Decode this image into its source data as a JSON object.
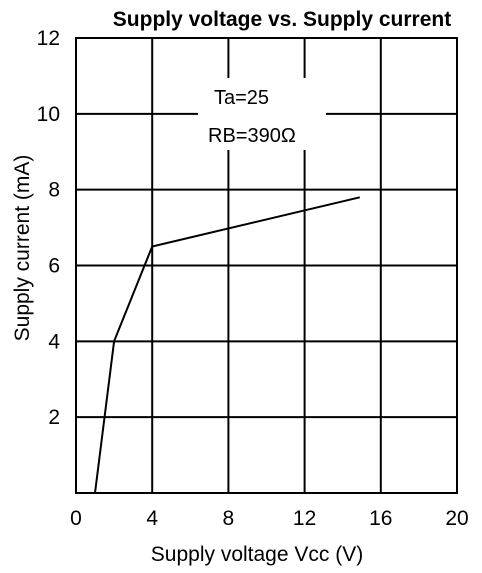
{
  "chart_data": {
    "type": "line",
    "title": "Supply voltage vs. Supply current",
    "xlabel": "Supply voltage Vcc (V)",
    "ylabel": "Supply current (mA)",
    "xlim": [
      0,
      20
    ],
    "ylim": [
      0,
      12
    ],
    "x_ticks": [
      "0",
      "4",
      "8",
      "12",
      "16",
      "20"
    ],
    "y_ticks": [
      "2",
      "4",
      "6",
      "8",
      "10",
      "12"
    ],
    "grid": true,
    "annotations": [
      "Ta=25",
      "RB=390Ω"
    ],
    "series": [
      {
        "x": [
          1.0,
          2.0,
          4.0,
          14.9
        ],
        "y": [
          0.0,
          4.0,
          6.5,
          7.8
        ]
      }
    ],
    "colors": {
      "line": "#000000",
      "grid": "#000000",
      "background": "#ffffff"
    }
  }
}
